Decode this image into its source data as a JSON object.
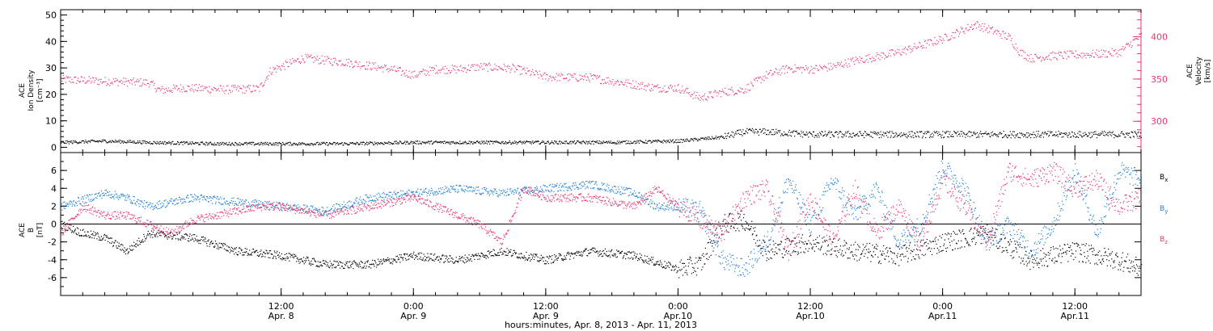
{
  "colors": {
    "pink": "#e8386e",
    "blue": "#1e7fd8",
    "black": "#000000",
    "background": "#ffffff"
  },
  "chart_data": [
    {
      "type": "scatter",
      "panel": "top",
      "ylabel_left_lines": [
        "ACE",
        "Ion Density",
        "[cm⁻³]"
      ],
      "ylabel_right_lines": [
        "ACE",
        "Velocity",
        "[km/s]"
      ],
      "ylim_left": [
        -2,
        52
      ],
      "ylim_right": [
        263,
        432
      ],
      "left_ticks": [
        0,
        10,
        20,
        30,
        40,
        50
      ],
      "right_ticks": [
        300,
        350,
        400
      ],
      "xlim_hours": [
        -8,
        90
      ],
      "series": [
        {
          "role": "velocity",
          "axis": "right",
          "color": "pink",
          "x": [
            -8,
            -4,
            0,
            1,
            3,
            7,
            10,
            11,
            14,
            18,
            22,
            24,
            26,
            28,
            30,
            33,
            36,
            40,
            43,
            46,
            48,
            50,
            52,
            54,
            56,
            58,
            60,
            62,
            64,
            68,
            72,
            75,
            78,
            79,
            80,
            82,
            86,
            88,
            90
          ],
          "y": [
            350,
            348,
            346,
            337,
            340,
            338,
            339,
            360,
            375,
            370,
            362,
            355,
            362,
            362,
            365,
            363,
            353,
            352,
            346,
            340,
            340,
            328,
            335,
            338,
            355,
            363,
            362,
            365,
            372,
            382,
            398,
            415,
            400,
            382,
            375,
            378,
            380,
            382,
            402
          ]
        },
        {
          "role": "density",
          "axis": "left",
          "color": "black",
          "x": [
            -8,
            -4,
            0,
            6,
            12,
            18,
            24,
            30,
            36,
            42,
            48,
            52,
            54,
            56,
            60,
            66,
            72,
            78,
            84,
            90
          ],
          "y": [
            2,
            2.5,
            2,
            1.5,
            1.5,
            1.5,
            2,
            2,
            2,
            2,
            2.5,
            4,
            6,
            6,
            5,
            5,
            5,
            5,
            5,
            5
          ]
        }
      ]
    },
    {
      "type": "scatter",
      "panel": "bottom",
      "ylabel_left_lines": [
        "ACE",
        "B",
        "[nT]"
      ],
      "ylim": [
        -8,
        8
      ],
      "left_ticks": [
        -6,
        -4,
        -2,
        0,
        2,
        4,
        6
      ],
      "legend": [
        {
          "label": "Bx",
          "color": "black"
        },
        {
          "label": "By",
          "color": "blue"
        },
        {
          "label": "Bz",
          "color": "pink"
        }
      ],
      "series": [
        {
          "name": "Bx",
          "color": "black",
          "x": [
            -8,
            -6,
            -4,
            -2,
            0,
            4,
            8,
            12,
            16,
            20,
            24,
            28,
            32,
            36,
            40,
            44,
            48,
            50,
            52,
            54,
            56,
            60,
            64,
            68,
            72,
            76,
            80,
            84,
            88,
            90
          ],
          "y": [
            0,
            -1,
            -1.5,
            -3,
            -1,
            -1.5,
            -3,
            -3.5,
            -4.5,
            -4.5,
            -3.5,
            -4,
            -3,
            -4,
            -3,
            -3.5,
            -5,
            -4.5,
            0,
            0.5,
            -3,
            -2,
            -3,
            -3.5,
            -2,
            -1,
            -4,
            -3,
            -4,
            -5
          ]
        },
        {
          "name": "By",
          "color": "blue",
          "x": [
            -8,
            -4,
            -2,
            0,
            4,
            8,
            12,
            16,
            20,
            24,
            28,
            32,
            36,
            40,
            44,
            46,
            48,
            50,
            52,
            54,
            56,
            58,
            60,
            62,
            64,
            66,
            68,
            70,
            72,
            74,
            76,
            78,
            80,
            82,
            84,
            86,
            88,
            90
          ],
          "y": [
            2,
            3.5,
            3,
            2,
            3,
            2.5,
            2,
            1.5,
            3,
            3.5,
            4,
            3.5,
            4,
            4.5,
            3.5,
            2,
            2,
            1.5,
            -4,
            -5,
            -2,
            5,
            0,
            5,
            1,
            4,
            -2,
            0,
            6.5,
            4,
            -2,
            0,
            -3,
            0,
            6,
            -1,
            6,
            5
          ]
        },
        {
          "name": "Bz",
          "color": "pink",
          "x": [
            -8,
            -6,
            -4,
            -2,
            0,
            2,
            4,
            6,
            8,
            10,
            12,
            16,
            20,
            24,
            28,
            30,
            32,
            34,
            36,
            40,
            44,
            46,
            48,
            50,
            52,
            54,
            56,
            58,
            60,
            62,
            64,
            66,
            68,
            70,
            72,
            74,
            76,
            78,
            80,
            82,
            84,
            86,
            88,
            90
          ],
          "y": [
            -1,
            2,
            1,
            1,
            0,
            -1,
            0.5,
            1,
            1.5,
            2,
            2,
            1,
            2,
            3,
            1,
            0,
            -2,
            4,
            3,
            3,
            2,
            4,
            2,
            0.5,
            -1,
            3,
            4,
            -3,
            3,
            -2,
            4,
            -1,
            2,
            -2,
            5,
            2,
            -2,
            6,
            5,
            6,
            4,
            5,
            2,
            3
          ]
        }
      ]
    }
  ],
  "x_axis": {
    "tick_labels_top": [
      "12:00",
      "0:00",
      "12:00",
      "0:00",
      "12:00",
      "0:00",
      "12:00"
    ],
    "tick_labels_bottom": [
      "Apr. 8",
      "Apr. 9",
      "Apr. 9",
      "Apr.10",
      "Apr.10",
      "Apr.11",
      "Apr.11"
    ],
    "tick_hours": [
      12,
      24,
      36,
      48,
      60,
      72,
      84
    ],
    "xlabel": "hours:minutes, Apr. 8, 2013 - Apr. 11, 2013"
  }
}
